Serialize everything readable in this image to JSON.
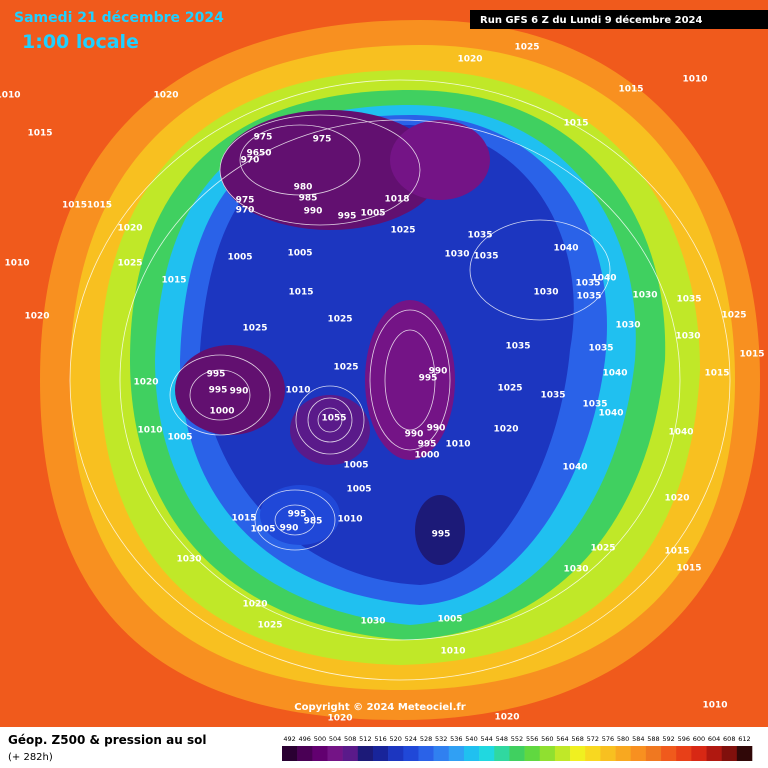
{
  "header": {
    "date": "Samedi 21 décembre 2024",
    "time": "1:00 locale",
    "run": "Run GFS 6 Z du Lundi 9 décembre 2024"
  },
  "copyright": "Copyright © 2024 Meteociel.fr",
  "footer": {
    "title": "Géop. Z500 & pression au sol",
    "lead": "(+ 282h)"
  },
  "scale": {
    "values": [
      492,
      496,
      500,
      504,
      508,
      512,
      516,
      520,
      524,
      528,
      532,
      536,
      540,
      544,
      548,
      552,
      556,
      560,
      564,
      568,
      572,
      576,
      580,
      584,
      588,
      592,
      596,
      600,
      604,
      608,
      612
    ],
    "colors": [
      "#2a0032",
      "#4a0055",
      "#620070",
      "#741486",
      "#5a1a8a",
      "#1c1a78",
      "#18249a",
      "#1c36c0",
      "#2048d8",
      "#2a62e8",
      "#3080f0",
      "#30a0f4",
      "#20c0f0",
      "#20d8e0",
      "#30d8a0",
      "#40d060",
      "#60d840",
      "#90e030",
      "#c0e828",
      "#f0f020",
      "#f8d820",
      "#f8c020",
      "#f8a820",
      "#f89020",
      "#f07820",
      "#f05a1c",
      "#e84018",
      "#d82814",
      "#b01810",
      "#80100c",
      "#300808"
    ]
  },
  "isobar_labels": [
    "1025",
    "1020",
    "1010",
    "1015",
    "1010",
    "1020",
    "1015",
    "1015",
    "975",
    "975",
    "9650",
    "970",
    "980",
    "985",
    "975",
    "970",
    "990",
    "995",
    "1005",
    "1018",
    "10151015",
    "1020",
    "1025",
    "1035",
    "1040",
    "1005",
    "1005",
    "1030",
    "1035",
    "1010",
    "1025",
    "1015",
    "1040",
    "1035",
    "1030",
    "1015",
    "1035",
    "1030",
    "1035",
    "1020",
    "1025",
    "1025",
    "1030",
    "1025",
    "1030",
    "1035",
    "1035",
    "1015",
    "1025",
    "995",
    "990",
    "995",
    "1040",
    "1015",
    "1020",
    "995",
    "990",
    "1010",
    "1025",
    "1035",
    "1035",
    "1040",
    "1000",
    "1055",
    "990",
    "1010",
    "990",
    "1010",
    "1020",
    "995",
    "1005",
    "1000",
    "1040",
    "1005",
    "1040",
    "1005",
    "1020",
    "995",
    "985",
    "1015",
    "1005",
    "990",
    "1010",
    "995",
    "1025",
    "1015",
    "1030",
    "1015",
    "1030",
    "1020",
    "1025",
    "1030",
    "1005",
    "1010",
    "1020",
    "1020",
    "1010"
  ]
}
